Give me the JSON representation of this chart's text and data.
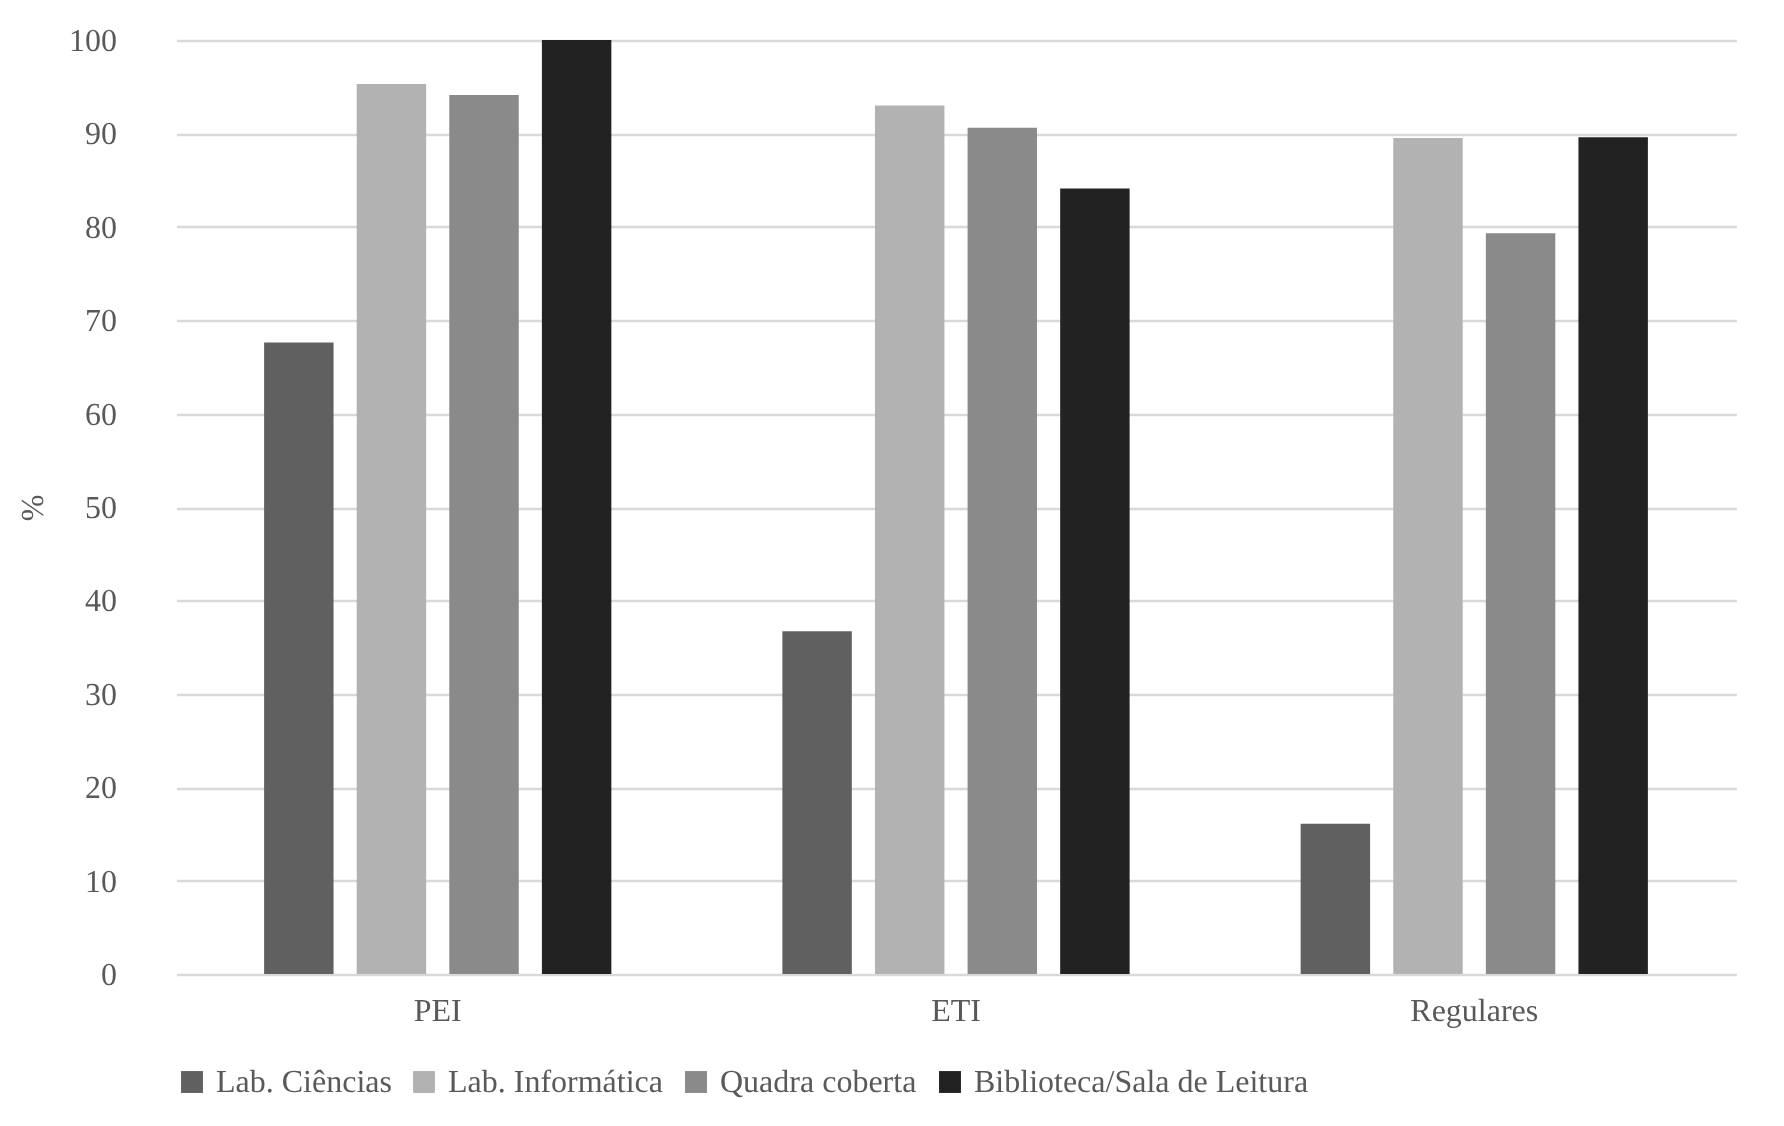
{
  "chart_data": {
    "type": "bar",
    "ylabel": "%",
    "categories": [
      "PEI",
      "ETI",
      "Regulares"
    ],
    "series": [
      {
        "name": "Lab. Ciências",
        "color": "#606060",
        "values": [
          67.6,
          36.7,
          16.1
        ]
      },
      {
        "name": "Lab. Informática",
        "color": "#b2b2b2",
        "values": [
          95.3,
          93.0,
          89.5
        ]
      },
      {
        "name": "Quadra coberta",
        "color": "#8a8a8a",
        "values": [
          94.1,
          90.6,
          79.3
        ]
      },
      {
        "name": "Biblioteca/Sala de Leitura",
        "color": "#222222",
        "values": [
          100,
          84.1,
          89.6
        ]
      }
    ],
    "ylim": [
      0,
      100
    ],
    "yticks": [
      0,
      10,
      20,
      30,
      40,
      50,
      60,
      70,
      80,
      90,
      100
    ],
    "grid": "y",
    "legend": "bottom"
  }
}
